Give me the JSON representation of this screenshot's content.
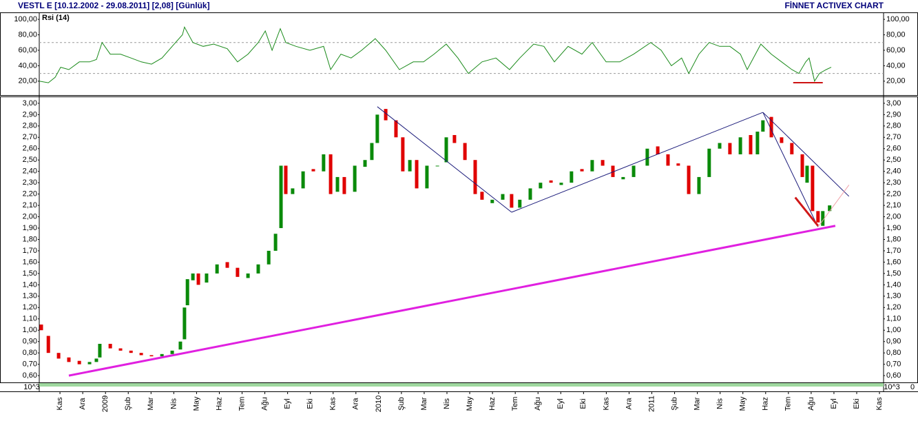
{
  "header": {
    "title": "VESTL E  [10.12.2002 - 29.08.2011]  [2,08]  [Günlük]",
    "brand": "FİNNET ACTIVEX CHART"
  },
  "chart_data": [
    {
      "type": "line",
      "xlim": [
        -0.91,
        36.18
      ],
      "ylim": [
        2,
        109
      ],
      "yticks": [
        {
          "value": 100,
          "label": "100,00"
        },
        {
          "value": 80,
          "label": "80,00"
        },
        {
          "value": 60,
          "label": "60,00"
        },
        {
          "value": 40,
          "label": "40,00"
        },
        {
          "value": 20,
          "label": "20,00"
        }
      ],
      "ref_lines": [
        70,
        30
      ],
      "series": [
        {
          "name": "Rsi (14)",
          "color": "#1a8a1a",
          "x": [
            -0.91,
            -0.51,
            -0.21,
            0.03,
            0.39,
            0.85,
            1.3,
            1.6,
            1.85,
            2.21,
            2.66,
            3.12,
            3.57,
            4.02,
            4.48,
            4.93,
            5.38,
            5.47,
            5.84,
            6.29,
            6.75,
            7.35,
            7.8,
            8.26,
            8.71,
            9.02,
            9.32,
            9.68,
            9.92,
            10.37,
            10.98,
            11.58,
            11.89,
            12.34,
            12.79,
            13.25,
            13.85,
            14.31,
            14.91,
            15.52,
            15.97,
            16.43,
            16.97,
            17.48,
            17.94,
            18.54,
            19.15,
            19.75,
            20.2,
            20.81,
            21.26,
            21.72,
            22.32,
            22.93,
            23.38,
            23.99,
            24.59,
            25.2,
            25.95,
            26.41,
            26.86,
            27.31,
            27.62,
            28.07,
            28.52,
            28.98,
            29.43,
            29.89,
            30.19,
            30.79,
            31.25,
            31.7,
            32.15,
            32.46,
            32.76,
            32.91,
            33.15,
            33.36,
            33.66,
            33.88
          ],
          "values": [
            20,
            18,
            25,
            38,
            35,
            45,
            45,
            48,
            70,
            55,
            55,
            50,
            45,
            42,
            50,
            65,
            80,
            90,
            70,
            65,
            68,
            62,
            45,
            55,
            70,
            85,
            60,
            88,
            70,
            65,
            60,
            65,
            35,
            55,
            50,
            60,
            75,
            60,
            35,
            45,
            45,
            55,
            68,
            50,
            30,
            45,
            50,
            35,
            50,
            68,
            65,
            45,
            65,
            55,
            70,
            45,
            45,
            55,
            70,
            60,
            40,
            50,
            30,
            55,
            70,
            65,
            65,
            55,
            35,
            68,
            55,
            45,
            35,
            30,
            45,
            50,
            20,
            30,
            35,
            38
          ]
        }
      ],
      "trendlines": [
        {
          "color": "#cc1111",
          "width": 2,
          "points": [
            [
              32.21,
              18
            ],
            [
              33.51,
              18
            ]
          ]
        }
      ]
    },
    {
      "type": "candlestick",
      "xlim": [
        -0.91,
        36.18
      ],
      "ylim": [
        0.54,
        3.06
      ],
      "up_color": "#0a8a0a",
      "down_color": "#e00000",
      "scale_label": "10^3",
      "volume_label": "0",
      "yticks": [
        {
          "value": 3.0,
          "label": "3,00"
        },
        {
          "value": 2.9,
          "label": "2,90"
        },
        {
          "value": 2.8,
          "label": "2,80"
        },
        {
          "value": 2.7,
          "label": "2,70"
        },
        {
          "value": 2.6,
          "label": "2,60"
        },
        {
          "value": 2.5,
          "label": "2,50"
        },
        {
          "value": 2.4,
          "label": "2,40"
        },
        {
          "value": 2.3,
          "label": "2,30"
        },
        {
          "value": 2.2,
          "label": "2,20"
        },
        {
          "value": 2.1,
          "label": "2,10"
        },
        {
          "value": 2.0,
          "label": "2,00"
        },
        {
          "value": 1.9,
          "label": "1,90"
        },
        {
          "value": 1.8,
          "label": "1,80"
        },
        {
          "value": 1.7,
          "label": "1,70"
        },
        {
          "value": 1.6,
          "label": "1,60"
        },
        {
          "value": 1.5,
          "label": "1,50"
        },
        {
          "value": 1.4,
          "label": "1,40"
        },
        {
          "value": 1.3,
          "label": "1,30"
        },
        {
          "value": 1.2,
          "label": "1,20"
        },
        {
          "value": 1.1,
          "label": "1,10"
        },
        {
          "value": 1.0,
          "label": "1,00"
        },
        {
          "value": 0.9,
          "label": "0,90"
        },
        {
          "value": 0.8,
          "label": "0,80"
        },
        {
          "value": 0.7,
          "label": "0,70"
        },
        {
          "value": 0.6,
          "label": "0,60"
        }
      ],
      "xticks": [
        {
          "value": 0,
          "label": "Kas"
        },
        {
          "value": 1,
          "label": "Ara"
        },
        {
          "value": 2,
          "label": "2009"
        },
        {
          "value": 3,
          "label": "Şub"
        },
        {
          "value": 4,
          "label": "Mar"
        },
        {
          "value": 5,
          "label": "Nis"
        },
        {
          "value": 6,
          "label": "May"
        },
        {
          "value": 7,
          "label": "Haz"
        },
        {
          "value": 8,
          "label": "Tem"
        },
        {
          "value": 9,
          "label": "Ağu"
        },
        {
          "value": 10,
          "label": "Eyl"
        },
        {
          "value": 11,
          "label": "Eki"
        },
        {
          "value": 12,
          "label": "Kas"
        },
        {
          "value": 13,
          "label": "Ara"
        },
        {
          "value": 14,
          "label": "2010"
        },
        {
          "value": 15,
          "label": "Şub"
        },
        {
          "value": 16,
          "label": "Mar"
        },
        {
          "value": 17,
          "label": "Nis"
        },
        {
          "value": 18,
          "label": "May"
        },
        {
          "value": 19,
          "label": "Haz"
        },
        {
          "value": 20,
          "label": "Tem"
        },
        {
          "value": 21,
          "label": "Ağu"
        },
        {
          "value": 22,
          "label": "Eyl"
        },
        {
          "value": 23,
          "label": "Eki"
        },
        {
          "value": 24,
          "label": "Kas"
        },
        {
          "value": 25,
          "label": "Ara"
        },
        {
          "value": 26,
          "label": "2011"
        },
        {
          "value": 27,
          "label": "Şub"
        },
        {
          "value": 28,
          "label": "Mar"
        },
        {
          "value": 29,
          "label": "Nis"
        },
        {
          "value": 30,
          "label": "May"
        },
        {
          "value": 31,
          "label": "Haz"
        },
        {
          "value": 32,
          "label": "Tem"
        },
        {
          "value": 33,
          "label": "Ağu"
        },
        {
          "value": 34,
          "label": "Eyl"
        },
        {
          "value": 35,
          "label": "Eki"
        },
        {
          "value": 36,
          "label": "Kas"
        }
      ],
      "x": [
        -0.82,
        -0.51,
        -0.06,
        0.39,
        0.85,
        1.3,
        1.6,
        1.75,
        2.21,
        2.66,
        3.12,
        3.57,
        4.02,
        4.48,
        4.93,
        5.29,
        5.47,
        5.6,
        5.84,
        6.08,
        6.44,
        6.9,
        7.35,
        7.8,
        8.26,
        8.71,
        9.17,
        9.47,
        9.71,
        9.92,
        10.22,
        10.68,
        11.13,
        11.58,
        11.89,
        12.19,
        12.49,
        12.95,
        13.4,
        13.7,
        13.94,
        14.31,
        14.76,
        15.06,
        15.37,
        15.67,
        16.12,
        16.58,
        16.97,
        17.33,
        17.79,
        18.24,
        18.54,
        18.99,
        19.45,
        19.84,
        20.2,
        20.66,
        21.11,
        21.57,
        22.02,
        22.47,
        22.93,
        23.38,
        23.84,
        24.29,
        24.74,
        25.2,
        25.8,
        26.26,
        26.71,
        27.16,
        27.62,
        28.07,
        28.52,
        28.98,
        29.43,
        29.89,
        30.34,
        30.64,
        30.88,
        31.25,
        31.7,
        32.15,
        32.61,
        32.82,
        33.06,
        33.3,
        33.51,
        33.81
      ],
      "open": [
        1.05,
        0.95,
        0.8,
        0.76,
        0.73,
        0.7,
        0.72,
        0.76,
        0.88,
        0.84,
        0.82,
        0.8,
        0.78,
        0.77,
        0.79,
        0.83,
        0.92,
        1.22,
        1.44,
        1.5,
        1.42,
        1.5,
        1.6,
        1.55,
        1.46,
        1.5,
        1.58,
        1.7,
        1.9,
        2.45,
        2.2,
        2.25,
        2.42,
        2.4,
        2.55,
        2.22,
        2.35,
        2.22,
        2.44,
        2.5,
        2.65,
        2.95,
        2.85,
        2.7,
        2.4,
        2.5,
        2.25,
        2.45,
        2.48,
        2.72,
        2.65,
        2.5,
        2.22,
        2.12,
        2.15,
        2.2,
        2.08,
        2.15,
        2.25,
        2.32,
        2.28,
        2.3,
        2.42,
        2.4,
        2.5,
        2.45,
        2.33,
        2.35,
        2.45,
        2.62,
        2.55,
        2.47,
        2.45,
        2.2,
        2.35,
        2.6,
        2.65,
        2.55,
        2.72,
        2.55,
        2.75,
        2.88,
        2.7,
        2.65,
        2.55,
        2.3,
        2.45,
        2.05,
        1.92,
        2.05
      ],
      "close": [
        1.0,
        0.8,
        0.75,
        0.72,
        0.7,
        0.72,
        0.75,
        0.88,
        0.84,
        0.82,
        0.8,
        0.78,
        0.77,
        0.79,
        0.82,
        0.9,
        1.2,
        1.45,
        1.5,
        1.4,
        1.5,
        1.58,
        1.55,
        1.47,
        1.5,
        1.58,
        1.7,
        1.85,
        2.45,
        2.2,
        2.25,
        2.4,
        2.4,
        2.55,
        2.2,
        2.35,
        2.2,
        2.45,
        2.5,
        2.65,
        2.9,
        2.85,
        2.7,
        2.4,
        2.5,
        2.25,
        2.45,
        2.45,
        2.7,
        2.65,
        2.5,
        2.2,
        2.15,
        2.15,
        2.2,
        2.08,
        2.15,
        2.25,
        2.3,
        2.3,
        2.3,
        2.4,
        2.4,
        2.5,
        2.45,
        2.35,
        2.35,
        2.45,
        2.6,
        2.55,
        2.45,
        2.45,
        2.2,
        2.35,
        2.6,
        2.65,
        2.55,
        2.7,
        2.55,
        2.75,
        2.85,
        2.7,
        2.65,
        2.55,
        2.35,
        2.45,
        2.05,
        1.95,
        2.05,
        2.1
      ],
      "trendlines": [
        {
          "color": "#e020e0",
          "width": 3,
          "points": [
            [
              0.39,
              0.6
            ],
            [
              34.06,
              1.92
            ]
          ]
        },
        {
          "color": "#1a1a7a",
          "width": 1,
          "points": [
            [
              13.94,
              2.97
            ],
            [
              19.84,
              2.04
            ]
          ]
        },
        {
          "color": "#1a1a7a",
          "width": 1,
          "points": [
            [
              19.84,
              2.04
            ],
            [
              30.88,
              2.92
            ]
          ]
        },
        {
          "color": "#1a1a7a",
          "width": 1,
          "points": [
            [
              30.88,
              2.92
            ],
            [
              34.66,
              2.18
            ]
          ]
        },
        {
          "color": "#1a1a7a",
          "width": 1,
          "points": [
            [
              30.88,
              2.92
            ],
            [
              33.3,
              1.91
            ]
          ]
        },
        {
          "color": "#d01818",
          "width": 3,
          "points": [
            [
              32.3,
              2.17
            ],
            [
              33.3,
              1.92
            ]
          ]
        },
        {
          "color": "#f0a0a8",
          "width": 1,
          "points": [
            [
              33.3,
              1.91
            ],
            [
              34.66,
              2.28
            ]
          ]
        }
      ]
    }
  ]
}
